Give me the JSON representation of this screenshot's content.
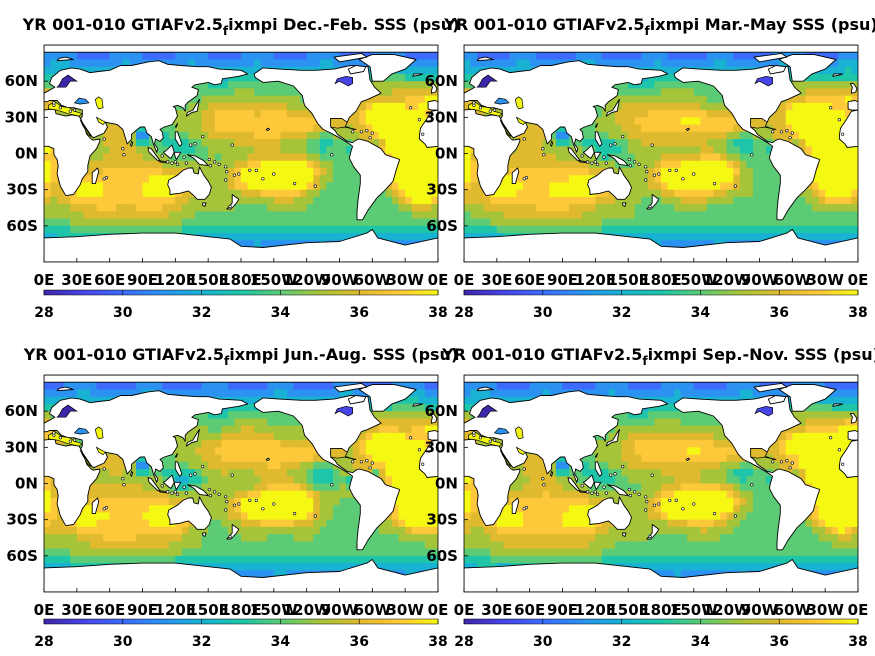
{
  "colors": {
    "land": "#ffffff",
    "coast": "#000000",
    "colormap": [
      "#3e26a8",
      "#4745e5",
      "#3d6cfd",
      "#2b92f1",
      "#19b2d3",
      "#1ec5a8",
      "#5ccb76",
      "#a6c43a",
      "#dfba2f",
      "#fdc83a",
      "#f5f813"
    ]
  },
  "chart_data": [
    {
      "type": "heatmap",
      "title_main": "YR 001-010 GTIAFv2.5",
      "title_sub": "f",
      "title_rest": "ixmpi Dec.-Feb. SSS (psu)",
      "xticks": [
        "0E",
        "30E",
        "60E",
        "90E",
        "120E",
        "150E",
        "180E",
        "150W",
        "120W",
        "90W",
        "60W",
        "30W",
        "0E"
      ],
      "yticks": [
        "60N",
        "30N",
        "0N",
        "30S",
        "60S"
      ],
      "colorbar": {
        "ticks": [
          "28",
          "30",
          "32",
          "34",
          "36",
          "38"
        ],
        "range": [
          28,
          38
        ]
      }
    },
    {
      "type": "heatmap",
      "title_main": "YR 001-010 GTIAFv2.5",
      "title_sub": "f",
      "title_rest": "ixmpi Mar.-May SSS (psu)",
      "xticks": [
        "0E",
        "30E",
        "60E",
        "90E",
        "120E",
        "150E",
        "180E",
        "150W",
        "120W",
        "90W",
        "60W",
        "30W",
        "0E"
      ],
      "yticks": [
        "60N",
        "30N",
        "0N",
        "30S",
        "60S"
      ],
      "colorbar": {
        "ticks": [
          "28",
          "30",
          "32",
          "34",
          "36",
          "38"
        ],
        "range": [
          28,
          38
        ]
      }
    },
    {
      "type": "heatmap",
      "title_main": "YR 001-010 GTIAFv2.5",
      "title_sub": "f",
      "title_rest": "ixmpi Jun.-Aug. SSS (psu)",
      "xticks": [
        "0E",
        "30E",
        "60E",
        "90E",
        "120E",
        "150E",
        "180E",
        "150W",
        "120W",
        "90W",
        "60W",
        "30W",
        "0E"
      ],
      "yticks": [
        "60N",
        "30N",
        "0N",
        "30S",
        "60S"
      ],
      "colorbar": {
        "ticks": [
          "28",
          "30",
          "32",
          "34",
          "36",
          "38"
        ],
        "range": [
          28,
          38
        ]
      }
    },
    {
      "type": "heatmap",
      "title_main": "YR 001-010 GTIAFv2.5",
      "title_sub": "f",
      "title_rest": "ixmpi Sep.-Nov. SSS (psu)",
      "xticks": [
        "0E",
        "30E",
        "60E",
        "90E",
        "120E",
        "150E",
        "180E",
        "150W",
        "120W",
        "90W",
        "60W",
        "30W",
        "0E"
      ],
      "yticks": [
        "60N",
        "30N",
        "0N",
        "30S",
        "60S"
      ],
      "colorbar": {
        "ticks": [
          "28",
          "30",
          "32",
          "34",
          "36",
          "38"
        ],
        "range": [
          28,
          38
        ]
      }
    }
  ]
}
